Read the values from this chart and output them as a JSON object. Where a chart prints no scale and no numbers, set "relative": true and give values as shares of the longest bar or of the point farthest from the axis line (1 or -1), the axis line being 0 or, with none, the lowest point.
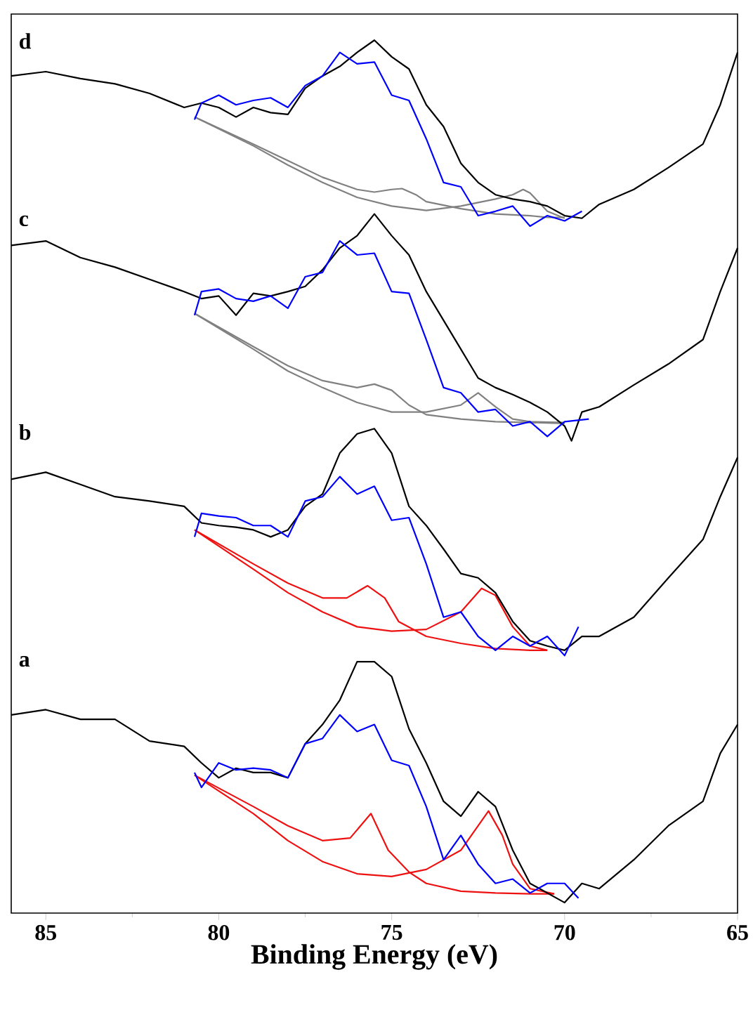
{
  "chart_data": {
    "type": "line",
    "relative": true,
    "xlabel": "Binding Energy (eV)",
    "xlim": [
      86,
      65
    ],
    "xticks": [
      85,
      80,
      75,
      70,
      65
    ],
    "annotations": [
      "d",
      "c",
      "b",
      "a"
    ],
    "series": [
      {
        "color": "#808080",
        "x": [
          80.7,
          79,
          78,
          77,
          76,
          75.5,
          75,
          74.7,
          74.3,
          74,
          73,
          72,
          71,
          70.5,
          70
        ],
        "values": [
          0.912,
          0.881,
          0.862,
          0.843,
          0.829,
          0.826,
          0.829,
          0.83,
          0.823,
          0.815,
          0.807,
          0.801,
          0.799,
          0.797,
          0.797
        ]
      },
      {
        "color": "#808080",
        "x": [
          80.7,
          79,
          78,
          77,
          76,
          75,
          74,
          73,
          72,
          71.5,
          71.2,
          71,
          70.5,
          70
        ],
        "values": [
          0.912,
          0.879,
          0.857,
          0.837,
          0.82,
          0.81,
          0.805,
          0.81,
          0.818,
          0.823,
          0.829,
          0.825,
          0.804,
          0.796
        ]
      },
      {
        "color": "#000000",
        "x": [
          86,
          85,
          84,
          83,
          82,
          81,
          80.5,
          80,
          79.5,
          79,
          78.5,
          78,
          77.5,
          77,
          76.5,
          76,
          75.5,
          75,
          74.5,
          74,
          73.5,
          73,
          72.5,
          72,
          71.5,
          71,
          70.5,
          70,
          69.5,
          69,
          68,
          67,
          66,
          65.5,
          65
        ],
        "values": [
          0.959,
          0.964,
          0.956,
          0.95,
          0.939,
          0.923,
          0.928,
          0.923,
          0.912,
          0.923,
          0.917,
          0.915,
          0.945,
          0.959,
          0.97,
          0.986,
          1.0,
          0.981,
          0.967,
          0.926,
          0.901,
          0.859,
          0.837,
          0.823,
          0.818,
          0.815,
          0.81,
          0.799,
          0.796,
          0.812,
          0.829,
          0.854,
          0.881,
          0.926,
          0.986
        ]
      },
      {
        "color": "#0000ff",
        "x": [
          80.7,
          80.5,
          80,
          79.5,
          79,
          78.5,
          78,
          77.5,
          77,
          76.5,
          76,
          75.5,
          75,
          74.5,
          74,
          73.5,
          73,
          72.5,
          72,
          71.5,
          71,
          70.5,
          70,
          69.5
        ],
        "values": [
          0.909,
          0.928,
          0.937,
          0.926,
          0.931,
          0.934,
          0.923,
          0.948,
          0.959,
          0.986,
          0.973,
          0.975,
          0.937,
          0.931,
          0.887,
          0.837,
          0.832,
          0.799,
          0.804,
          0.81,
          0.787,
          0.799,
          0.793,
          0.804
        ]
      },
      {
        "color": "#808080",
        "x": [
          80.7,
          79,
          78,
          77,
          76,
          75.5,
          75,
          74.5,
          74,
          73,
          72,
          71,
          70
        ],
        "values": [
          0.687,
          0.649,
          0.627,
          0.61,
          0.602,
          0.606,
          0.599,
          0.582,
          0.571,
          0.566,
          0.563,
          0.562,
          0.561
        ]
      },
      {
        "color": "#808080",
        "x": [
          80.7,
          79,
          78,
          77,
          76,
          75,
          74,
          73,
          72.5,
          72,
          71.5,
          71,
          70
        ],
        "values": [
          0.687,
          0.646,
          0.621,
          0.602,
          0.585,
          0.574,
          0.574,
          0.582,
          0.596,
          0.58,
          0.566,
          0.563,
          0.562
        ]
      },
      {
        "color": "#000000",
        "x": [
          86,
          85,
          84,
          83,
          82,
          81,
          80.5,
          80,
          79.5,
          79,
          78.5,
          78,
          77.5,
          77,
          76.5,
          76,
          75.5,
          75,
          74.5,
          74,
          73.5,
          73,
          72.5,
          72,
          71.5,
          71,
          70.5,
          70,
          69.8,
          69.5,
          69,
          68,
          67,
          66,
          65.5,
          65
        ],
        "values": [
          0.765,
          0.77,
          0.751,
          0.74,
          0.726,
          0.712,
          0.704,
          0.707,
          0.685,
          0.71,
          0.707,
          0.712,
          0.718,
          0.737,
          0.762,
          0.776,
          0.801,
          0.776,
          0.754,
          0.712,
          0.679,
          0.646,
          0.613,
          0.602,
          0.594,
          0.585,
          0.574,
          0.558,
          0.541,
          0.574,
          0.58,
          0.605,
          0.629,
          0.657,
          0.712,
          0.762
        ]
      },
      {
        "color": "#0000ff",
        "x": [
          80.7,
          80.5,
          80,
          79.5,
          79,
          78.5,
          78,
          77.5,
          77,
          76.5,
          76,
          75.5,
          75,
          74.5,
          74,
          73.5,
          73,
          72.5,
          72,
          71.5,
          71,
          70.5,
          70,
          69.3
        ],
        "values": [
          0.685,
          0.712,
          0.715,
          0.704,
          0.701,
          0.707,
          0.693,
          0.729,
          0.734,
          0.77,
          0.754,
          0.756,
          0.712,
          0.71,
          0.657,
          0.602,
          0.596,
          0.574,
          0.577,
          0.558,
          0.563,
          0.546,
          0.563,
          0.566
        ]
      },
      {
        "color": "#ee1111",
        "x": [
          80.7,
          79,
          78,
          77,
          76.3,
          75.7,
          75.2,
          74.8,
          74,
          73,
          72,
          71,
          70.5
        ],
        "values": [
          0.439,
          0.4,
          0.378,
          0.361,
          0.361,
          0.375,
          0.361,
          0.334,
          0.317,
          0.309,
          0.303,
          0.301,
          0.301
        ]
      },
      {
        "color": "#ee1111",
        "x": [
          80.7,
          79,
          78,
          77,
          76,
          75,
          74,
          73,
          72.4,
          72,
          71.5,
          71,
          70.5
        ],
        "values": [
          0.439,
          0.394,
          0.367,
          0.345,
          0.328,
          0.323,
          0.325,
          0.345,
          0.372,
          0.364,
          0.328,
          0.306,
          0.301
        ]
      },
      {
        "color": "#000000",
        "x": [
          86,
          85,
          84,
          83,
          82,
          81,
          80.5,
          80,
          79.5,
          79,
          78.5,
          78,
          77.5,
          77,
          76.5,
          76,
          75.5,
          75,
          74.5,
          74,
          73.5,
          73,
          72.5,
          72,
          71.5,
          71,
          70.5,
          70,
          69.5,
          69,
          68,
          67,
          66,
          65.5,
          65
        ],
        "values": [
          0.497,
          0.505,
          0.491,
          0.477,
          0.472,
          0.466,
          0.447,
          0.444,
          0.442,
          0.439,
          0.431,
          0.439,
          0.466,
          0.48,
          0.527,
          0.549,
          0.555,
          0.527,
          0.466,
          0.444,
          0.417,
          0.389,
          0.384,
          0.367,
          0.334,
          0.312,
          0.306,
          0.301,
          0.317,
          0.317,
          0.339,
          0.384,
          0.428,
          0.477,
          0.522
        ]
      },
      {
        "color": "#0000ff",
        "x": [
          80.7,
          80.5,
          80,
          79.5,
          79,
          78.5,
          78,
          77.5,
          77,
          76.5,
          76,
          75.5,
          75,
          74.5,
          74,
          73.5,
          73,
          72.5,
          72,
          71.5,
          71,
          70.5,
          70,
          69.6
        ],
        "values": [
          0.431,
          0.458,
          0.455,
          0.453,
          0.444,
          0.444,
          0.431,
          0.472,
          0.477,
          0.5,
          0.48,
          0.489,
          0.45,
          0.453,
          0.4,
          0.339,
          0.345,
          0.317,
          0.301,
          0.317,
          0.306,
          0.317,
          0.295,
          0.328
        ]
      },
      {
        "color": "#ee1111",
        "x": [
          80.7,
          79,
          78,
          77,
          76.2,
          75.6,
          75.1,
          74.5,
          74,
          73,
          72,
          71,
          70.3
        ],
        "values": [
          0.158,
          0.122,
          0.1,
          0.083,
          0.086,
          0.114,
          0.072,
          0.047,
          0.034,
          0.025,
          0.023,
          0.022,
          0.022
        ]
      },
      {
        "color": "#ee1111",
        "x": [
          80.7,
          79,
          78,
          77,
          76,
          75,
          74,
          73,
          72.2,
          71.8,
          71.5,
          71,
          70.3
        ],
        "values": [
          0.158,
          0.114,
          0.083,
          0.059,
          0.045,
          0.042,
          0.05,
          0.072,
          0.117,
          0.089,
          0.056,
          0.028,
          0.022
        ]
      },
      {
        "color": "#000000",
        "x": [
          86,
          85,
          84,
          83,
          82,
          81,
          80.5,
          80,
          79.5,
          79,
          78.5,
          78,
          77.5,
          77,
          76.5,
          76,
          75.5,
          75,
          74.5,
          74,
          73.5,
          73,
          72.5,
          72,
          71.5,
          71,
          70.5,
          70,
          69.5,
          69,
          68,
          67,
          66,
          65.5,
          65
        ],
        "values": [
          0.227,
          0.233,
          0.222,
          0.222,
          0.197,
          0.191,
          0.172,
          0.155,
          0.166,
          0.161,
          0.161,
          0.155,
          0.194,
          0.216,
          0.244,
          0.288,
          0.288,
          0.271,
          0.211,
          0.172,
          0.128,
          0.111,
          0.139,
          0.122,
          0.072,
          0.034,
          0.023,
          0.012,
          0.034,
          0.028,
          0.061,
          0.1,
          0.128,
          0.183,
          0.216
        ]
      },
      {
        "color": "#0000ff",
        "x": [
          80.7,
          80.5,
          80,
          79.5,
          79,
          78.5,
          78,
          77.5,
          77,
          76.5,
          76,
          75.5,
          75,
          74.5,
          74,
          73.5,
          73,
          72.5,
          72,
          71.5,
          71,
          70.5,
          70,
          69.6
        ],
        "values": [
          0.161,
          0.144,
          0.172,
          0.164,
          0.166,
          0.164,
          0.155,
          0.194,
          0.2,
          0.227,
          0.208,
          0.216,
          0.175,
          0.169,
          0.122,
          0.061,
          0.089,
          0.056,
          0.034,
          0.039,
          0.023,
          0.034,
          0.034,
          0.017
        ]
      }
    ]
  }
}
